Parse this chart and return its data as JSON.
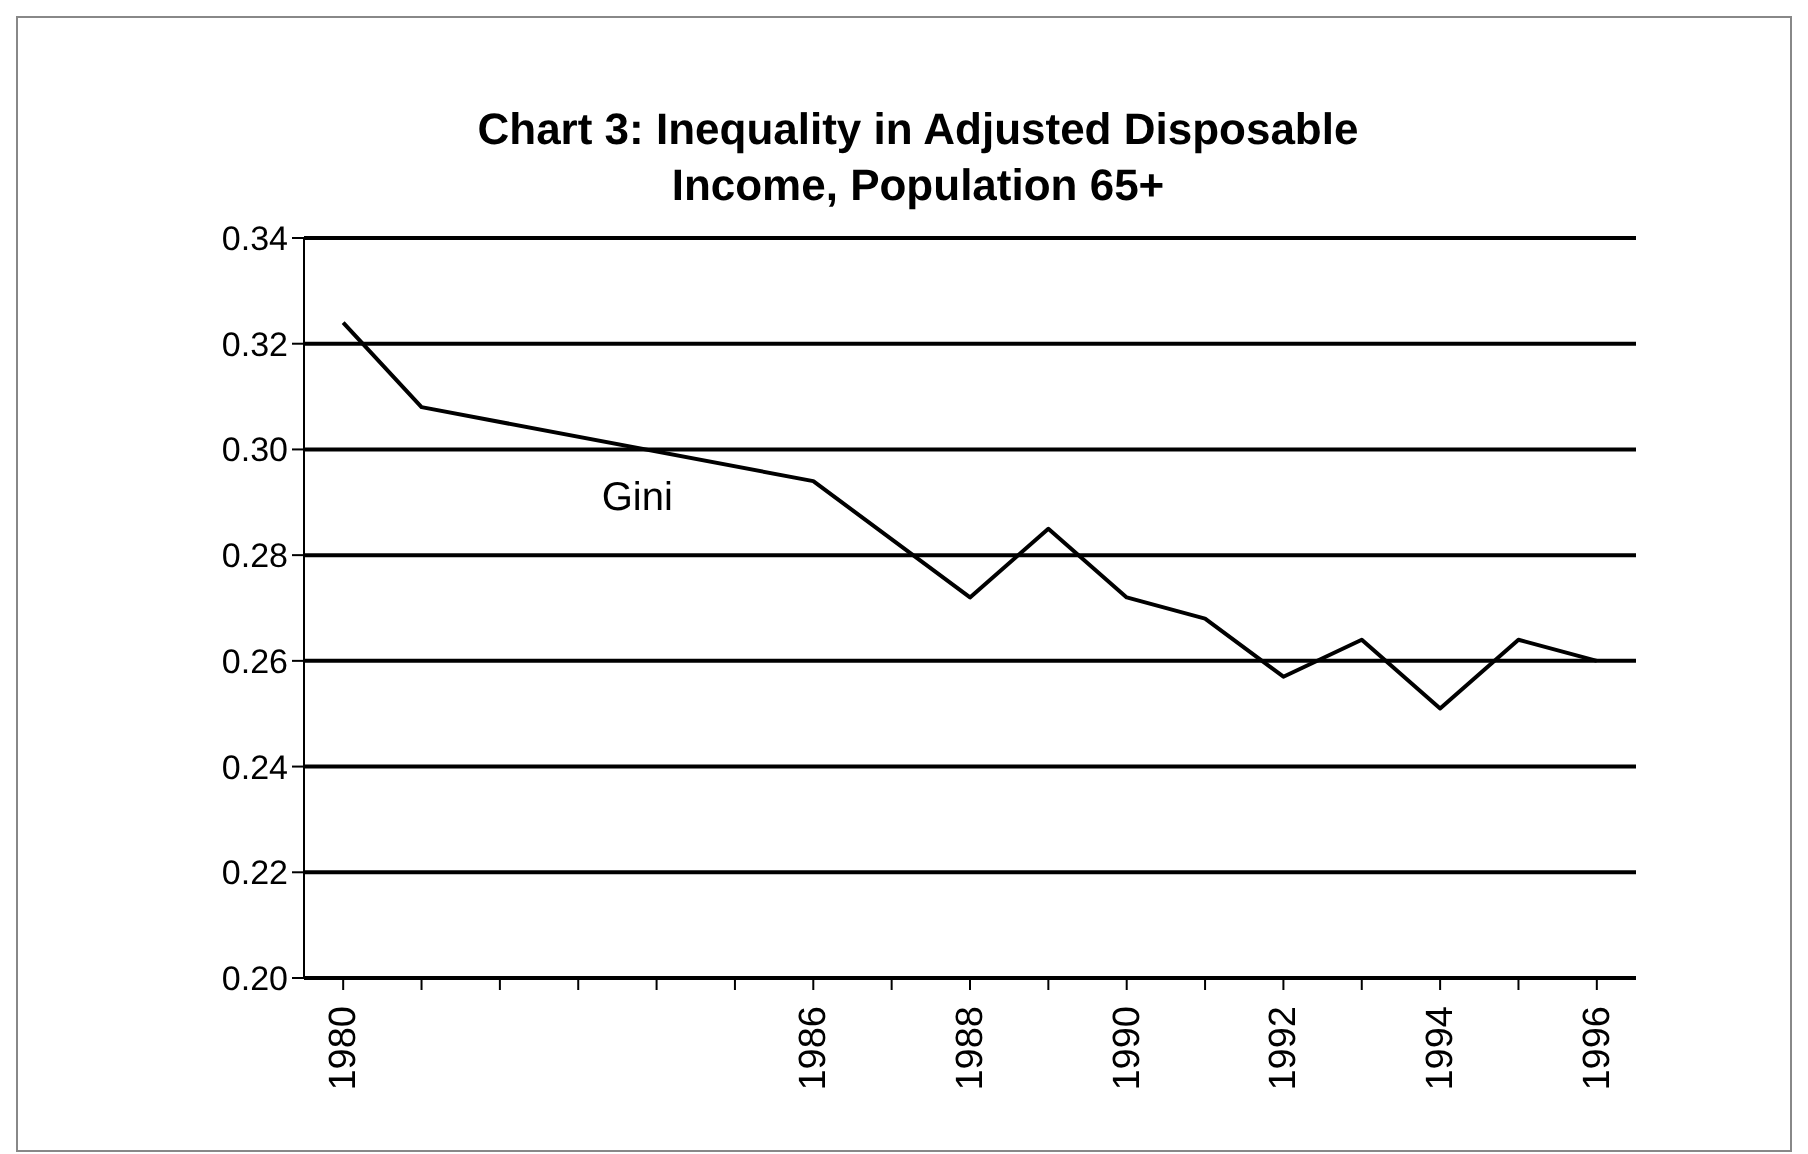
{
  "chart_data": {
    "type": "line",
    "title": "Chart 3: Inequality in Adjusted Disposable Income, Population 65+",
    "categories": [
      "1980",
      null,
      null,
      null,
      null,
      null,
      "1986",
      null,
      "1988",
      null,
      "1990",
      null,
      "1992",
      null,
      "1994",
      null,
      "1996"
    ],
    "series": [
      {
        "name": "Gini",
        "color": "#000000",
        "values": [
          0.324,
          0.308,
          null,
          null,
          null,
          null,
          0.294,
          null,
          0.272,
          0.285,
          0.272,
          0.268,
          0.257,
          0.264,
          0.251,
          0.264,
          0.26
        ]
      }
    ],
    "ylim": [
      0.2,
      0.34
    ],
    "yticks": [
      {
        "value": 0.2,
        "label": "0.20"
      },
      {
        "value": 0.22,
        "label": "0.22"
      },
      {
        "value": 0.24,
        "label": "0.24"
      },
      {
        "value": 0.26,
        "label": "0.26"
      },
      {
        "value": 0.28,
        "label": "0.28"
      },
      {
        "value": 0.3,
        "label": "0.30"
      },
      {
        "value": 0.32,
        "label": "0.32"
      },
      {
        "value": 0.34,
        "label": "0.34"
      }
    ],
    "grid": "y",
    "marker": "none",
    "line_style": "solid"
  }
}
